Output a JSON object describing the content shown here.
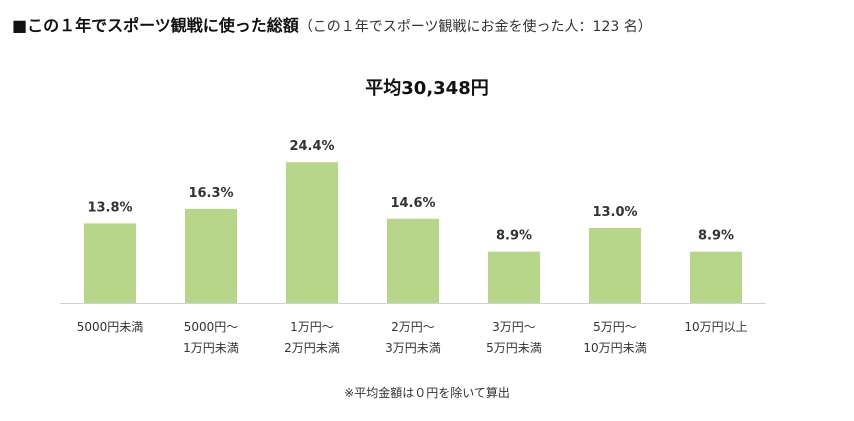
{
  "header": {
    "title": "■この１年でスポーツ観戦に使った総額",
    "subtitle": "（この１年でスポーツ観戦にお金を使った人：123 名）"
  },
  "average_label": "平均30,348円",
  "footnote": "※平均金額は０円を除いて算出",
  "colors": {
    "bar": "#b8d68a",
    "axis": "#d0d0d0",
    "text": "#333333"
  },
  "chart_data": {
    "type": "bar",
    "title": "平均30,348円",
    "categories": [
      [
        "5000円未満"
      ],
      [
        "5000円～",
        "1万円未満"
      ],
      [
        "1万円～",
        "2万円未満"
      ],
      [
        "2万円～",
        "3万円未満"
      ],
      [
        "3万円～",
        "5万円未満"
      ],
      [
        "5万円～",
        "10万円未満"
      ],
      [
        "10万円以上"
      ]
    ],
    "values": [
      13.8,
      16.3,
      24.4,
      14.6,
      8.9,
      13.0,
      8.9
    ],
    "value_labels": [
      "13.8%",
      "16.3%",
      "24.4%",
      "14.6%",
      "8.9%",
      "13.0%",
      "8.9%"
    ],
    "unit": "%",
    "xlabel": "",
    "ylabel": "",
    "ylim": [
      0,
      26
    ],
    "grid": false,
    "legend": "none"
  }
}
